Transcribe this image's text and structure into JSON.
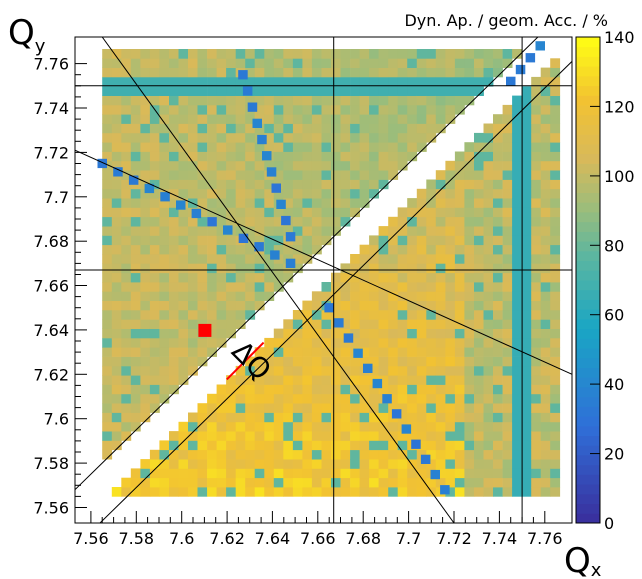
{
  "chart_data": {
    "type": "heatmap",
    "title": "",
    "xlabel": "Q",
    "xlabel_sub": "x",
    "ylabel": "Q",
    "ylabel_sub": "y",
    "colorbar_label": "Dyn. Ap. / geom. Acc.  / %",
    "xlim": [
      7.553,
      7.772
    ],
    "ylim": [
      7.553,
      7.772
    ],
    "zlim": [
      0,
      140
    ],
    "x_ticks": [
      7.56,
      7.58,
      7.6,
      7.62,
      7.64,
      7.66,
      7.68,
      7.7,
      7.72,
      7.74,
      7.76
    ],
    "x_tick_labels": [
      "7.56",
      "7.58",
      "7.6",
      "7.62",
      "7.64",
      "7.66",
      "7.68",
      "7.7",
      "7.72",
      "7.74",
      "7.76"
    ],
    "y_ticks": [
      7.56,
      7.58,
      7.6,
      7.62,
      7.64,
      7.66,
      7.68,
      7.7,
      7.72,
      7.74,
      7.76
    ],
    "y_tick_labels": [
      "7.56",
      "7.58",
      "7.6",
      "7.62",
      "7.64",
      "7.66",
      "7.68",
      "7.7",
      "7.72",
      "7.74",
      "7.76"
    ],
    "colorbar_ticks": [
      0,
      20,
      40,
      60,
      80,
      100,
      120,
      140
    ],
    "colorbar_tick_labels": [
      "0",
      "20",
      "40",
      "60",
      "80",
      "100",
      "120",
      "140"
    ],
    "grid_region": {
      "qx": [
        7.565,
        7.765
      ],
      "qy": [
        7.565,
        7.765
      ],
      "cell": 0.0042
    },
    "resonance_lines": [
      {
        "type": "vertical",
        "qx": 7.667
      },
      {
        "type": "vertical",
        "qx": 7.75
      },
      {
        "type": "horizontal",
        "qy": 7.667
      },
      {
        "type": "horizontal",
        "qy": 7.75
      },
      {
        "type": "diagonal",
        "through": [
          [
            7.564,
            7.553
          ],
          [
            7.772,
            7.761
          ]
        ]
      },
      {
        "type": "diagonal",
        "through": [
          [
            7.553,
            7.568
          ],
          [
            7.765,
            7.78
          ]
        ]
      },
      {
        "type": "line",
        "through": [
          [
            7.565,
            7.772
          ],
          [
            7.72,
            7.553
          ]
        ]
      },
      {
        "type": "line",
        "through": [
          [
            7.553,
            7.721
          ],
          [
            7.772,
            7.62
          ]
        ]
      }
    ],
    "working_point": {
      "qx": 7.61,
      "qy": 7.64,
      "color": "#ff0000"
    },
    "annotation": {
      "text": "ΔQ",
      "color": "#ff0000"
    },
    "colors": {
      "low": "#3a4bd2",
      "mid": "#20b4b0",
      "high": "#f2c232",
      "max": "#ffff14"
    }
  }
}
